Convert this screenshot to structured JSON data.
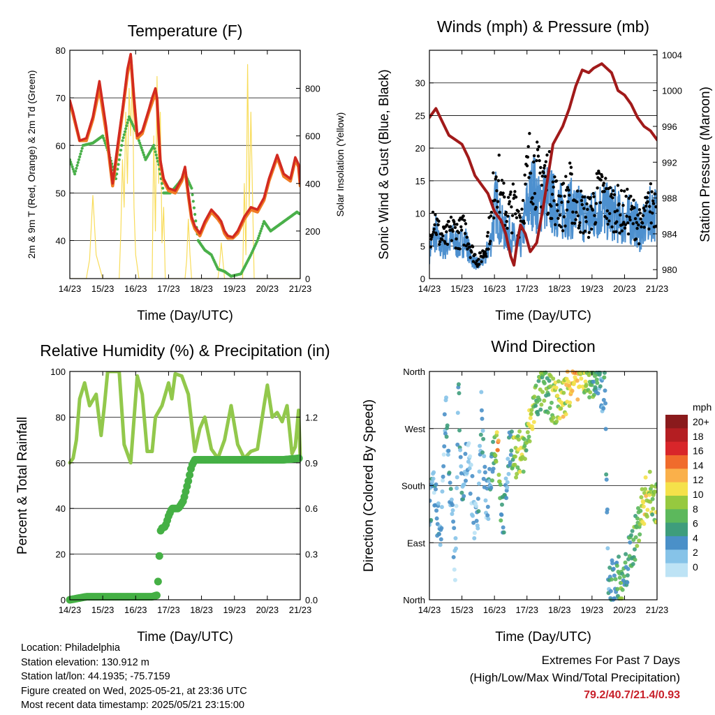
{
  "colors": {
    "temp_red": "#d22a20",
    "temp_orange": "#f07b24",
    "dewpoint_green": "#4ab04a",
    "solar_yellow": "#f8dc5a",
    "wind_blue": "#4d90cf",
    "gust_black": "#000000",
    "pressure_maroon": "#a11a1a",
    "rh_light_green": "#92c84c",
    "precip_green": "#45b045",
    "extremes_red": "#c8202a"
  },
  "time_axis": {
    "tick_labels": [
      "14/23",
      "15/23",
      "16/23",
      "17/23",
      "18/23",
      "19/23",
      "20/23",
      "21/23"
    ],
    "xlabel": "Time (Day/UTC)"
  },
  "chart_data": [
    {
      "id": "temperature",
      "type": "line",
      "title": "Temperature (F)",
      "ylabel_left": "2m & 9m T (Red, Orange) & 2m Td (Green)",
      "ylabel_right": "Solar Insolation (Yellow)",
      "ylim": [
        32,
        80
      ],
      "yticks": [
        40,
        50,
        60,
        70,
        80
      ],
      "y2lim": [
        0,
        960
      ],
      "y2ticks": [
        0,
        200,
        400,
        600,
        800
      ],
      "grid": true,
      "series": [
        {
          "x": [
            0,
            0.1,
            0.3,
            0.5,
            0.7,
            0.9,
            1.1,
            1.3,
            1.45,
            1.6,
            1.75,
            1.85,
            1.95,
            2.05,
            2.2,
            2.4,
            2.5,
            2.6,
            2.65,
            2.7,
            2.75,
            2.85,
            3.0,
            3.2,
            3.4,
            3.5,
            3.6,
            3.7,
            3.8,
            3.95,
            4.1,
            4.3,
            4.5,
            4.6,
            4.7,
            4.8,
            4.95,
            5.1,
            5.3,
            5.5,
            5.7,
            5.9,
            6.05,
            6.2,
            6.3,
            6.5,
            6.7,
            6.85,
            6.95,
            7.0
          ],
          "values": [
            69.5,
            67,
            61,
            61.5,
            66,
            73.5,
            64,
            52,
            60,
            67.5,
            76,
            79.2,
            70,
            62,
            63,
            67.5,
            70,
            72,
            70,
            63,
            57,
            53,
            51,
            50.5,
            53,
            55.5,
            50,
            45,
            43,
            41.5,
            44,
            46.5,
            45,
            44,
            42,
            41,
            40.7,
            42,
            45,
            47,
            46.5,
            49,
            53,
            56,
            58,
            54,
            53,
            57.5,
            56,
            52
          ]
        },
        {
          "x": [
            0,
            0.1,
            0.3,
            0.5,
            0.7,
            0.9,
            1.1,
            1.3,
            1.45,
            1.6,
            1.75,
            1.85,
            1.95,
            2.05,
            2.2,
            2.4,
            2.5,
            2.6,
            2.65,
            2.7,
            2.75,
            2.85,
            3.0,
            3.2,
            3.4,
            3.5,
            3.6,
            3.7,
            3.8,
            3.95,
            4.1,
            4.3,
            4.5,
            4.6,
            4.7,
            4.8,
            4.95,
            5.1,
            5.3,
            5.5,
            5.7,
            5.9,
            6.05,
            6.2,
            6.3,
            6.5,
            6.7,
            6.85,
            6.95,
            7.0
          ],
          "values": [
            69,
            66.5,
            61,
            61,
            65.5,
            72,
            63,
            51.5,
            59,
            67,
            75,
            78.5,
            69.5,
            61.5,
            62.5,
            67,
            69,
            71,
            69.5,
            62.5,
            56.5,
            52.5,
            50.5,
            50,
            52.5,
            55,
            49.5,
            44.5,
            42.5,
            41,
            43.5,
            46,
            44.5,
            43.5,
            41.5,
            40.5,
            40.5,
            41.5,
            44.5,
            46.5,
            46,
            48.5,
            52.5,
            55.5,
            57.5,
            53.5,
            52.5,
            57,
            55.5,
            51.5
          ]
        },
        {
          "x": [
            0,
            0.15,
            0.4,
            0.7,
            1.0,
            1.2,
            1.4,
            1.6,
            1.8,
            2.0,
            2.15,
            2.3,
            2.55,
            2.7,
            2.85,
            3.05,
            3.3,
            3.5,
            3.7,
            3.9,
            4.1,
            4.3,
            4.5,
            4.7,
            4.9,
            5.2,
            5.5,
            5.7,
            5.9,
            6.1,
            6.3,
            6.5,
            6.7,
            6.9,
            7.0
          ],
          "values": [
            57,
            54,
            60,
            60.5,
            62,
            58,
            53,
            61,
            66,
            63,
            60,
            57,
            60,
            56,
            50,
            50,
            52,
            54,
            51,
            40,
            38,
            37,
            34,
            33.5,
            32.5,
            33,
            37,
            40,
            44,
            42,
            43,
            44,
            45,
            46,
            45.5
          ]
        },
        {
          "x": [
            0,
            0.3,
            0.5,
            0.6,
            0.7,
            0.8,
            1.0,
            1.3,
            1.5,
            1.55,
            1.6,
            1.65,
            1.7,
            1.75,
            1.8,
            1.85,
            1.9,
            1.95,
            2.0,
            2.1,
            2.2,
            2.4,
            2.5,
            2.55,
            2.6,
            2.65,
            2.7,
            2.75,
            2.8,
            2.85,
            2.9,
            3.0,
            3.5,
            3.55,
            3.6,
            3.65,
            3.7,
            3.8,
            4.5,
            4.55,
            4.6,
            4.7,
            5.2,
            5.25,
            5.3,
            5.35,
            5.4,
            5.45,
            5.5,
            5.6,
            6.3,
            6.5,
            7.0
          ],
          "values": [
            0,
            0,
            0,
            80,
            350,
            100,
            0,
            0,
            0,
            200,
            500,
            300,
            700,
            400,
            800,
            600,
            900,
            300,
            100,
            0,
            0,
            0,
            0,
            600,
            200,
            850,
            400,
            700,
            150,
            300,
            0,
            0,
            0,
            80,
            250,
            100,
            0,
            0,
            0,
            60,
            150,
            0,
            0,
            0,
            400,
            100,
            900,
            300,
            700,
            0,
            0,
            0,
            0
          ]
        }
      ]
    },
    {
      "id": "winds",
      "type": "scatter",
      "title": "Winds (mph) & Pressure (mb)",
      "ylabel_left": "Sonic Wind & Gust (Blue, Black)",
      "ylabel_right": "Station Pressure (Maroon)",
      "ylim": [
        0,
        35
      ],
      "yticks": [
        0,
        5,
        10,
        15,
        20,
        25,
        30
      ],
      "y2lim": [
        979,
        1004.5
      ],
      "y2ticks": [
        980,
        984,
        988,
        992,
        996,
        1000,
        1004
      ],
      "grid": true,
      "series": [
        {
          "x": [
            0,
            0.1,
            0.2,
            0.3,
            0.5,
            0.7,
            0.9,
            1.1,
            1.3,
            1.5,
            1.7,
            1.9,
            2.05,
            2.2,
            2.4,
            2.6,
            2.8,
            3.0,
            3.1,
            3.2,
            3.35,
            3.5,
            3.7,
            3.9,
            4.1,
            4.3,
            4.5,
            4.7,
            4.9,
            5.1,
            5.3,
            5.5,
            5.7,
            5.9,
            6.1,
            6.3,
            6.5,
            6.7,
            6.8,
            6.9,
            7.0
          ],
          "values": [
            4,
            6,
            7,
            5,
            5,
            6,
            5,
            6,
            3,
            2,
            3,
            6,
            12,
            8,
            7,
            6,
            5,
            11,
            12,
            14,
            11,
            13,
            12,
            11,
            10,
            11,
            10,
            10,
            9,
            10,
            11,
            10,
            10,
            9,
            9,
            9,
            7,
            9,
            10,
            10,
            10
          ]
        },
        {
          "x": [
            0,
            0.1,
            0.2,
            0.3,
            0.5,
            0.7,
            0.9,
            1.1,
            1.3,
            1.5,
            1.7,
            1.9,
            2.05,
            2.2,
            2.4,
            2.6,
            2.8,
            3.0,
            3.1,
            3.2,
            3.35,
            3.5,
            3.7,
            3.9,
            4.1,
            4.3,
            4.5,
            4.7,
            4.9,
            5.1,
            5.3,
            5.5,
            5.7,
            5.9,
            6.1,
            6.3,
            6.5,
            6.7,
            6.8,
            6.9,
            7.0
          ],
          "values": [
            7,
            12,
            10,
            8,
            7,
            9,
            8,
            9,
            5,
            3,
            5,
            10,
            21,
            14,
            12,
            13,
            11,
            18,
            21,
            20,
            18,
            19,
            17,
            14,
            13,
            16,
            13,
            12,
            11,
            14,
            16,
            13,
            13,
            12,
            12,
            11,
            9,
            12,
            13,
            14,
            13
          ]
        },
        {
          "x": [
            0,
            0.2,
            0.4,
            0.6,
            0.8,
            1.0,
            1.2,
            1.4,
            1.6,
            1.8,
            1.9,
            2.0,
            2.1,
            2.2,
            2.35,
            2.5,
            2.6,
            2.7,
            2.8,
            2.95,
            3.1,
            3.3,
            3.5,
            3.8,
            4.1,
            4.3,
            4.5,
            4.7,
            4.9,
            5.05,
            5.3,
            5.6,
            5.8,
            6.0,
            6.2,
            6.4,
            6.6,
            6.8,
            7.0
          ],
          "values": [
            997,
            998,
            996.5,
            995,
            994.5,
            994,
            992.5,
            990.5,
            989.5,
            988.5,
            987.5,
            986.5,
            986,
            985.5,
            984,
            981.5,
            980.5,
            983,
            985,
            984,
            982,
            983,
            987,
            994,
            996,
            998,
            1000.5,
            1002.3,
            1002,
            1002.5,
            1003,
            1002,
            1000,
            999.5,
            998.5,
            997,
            996,
            995.5,
            994.5
          ]
        }
      ]
    },
    {
      "id": "humidity",
      "type": "line",
      "title": "Relative Humidity (%) & Precipitation (in)",
      "ylabel_left": "Percent & Total Rainfall",
      "ylim": [
        0,
        100
      ],
      "yticks": [
        0,
        20,
        40,
        60,
        80,
        100
      ],
      "y2lim": [
        0,
        1.5
      ],
      "y2ticks": [
        0.0,
        0.3,
        0.6,
        0.9,
        1.2
      ],
      "grid": true,
      "series": [
        {
          "x": [
            0,
            0.1,
            0.2,
            0.3,
            0.45,
            0.6,
            0.8,
            0.95,
            1.05,
            1.15,
            1.3,
            1.5,
            1.65,
            1.85,
            2.05,
            2.2,
            2.35,
            2.5,
            2.6,
            2.8,
            3.0,
            3.1,
            3.2,
            3.4,
            3.6,
            3.8,
            3.95,
            4.1,
            4.3,
            4.5,
            4.7,
            4.9,
            5.1,
            5.3,
            5.5,
            5.7,
            5.9,
            6.0,
            6.15,
            6.3,
            6.45,
            6.6,
            6.75,
            6.85,
            6.95,
            7.0
          ],
          "values": [
            60,
            62,
            70,
            88,
            95,
            85,
            90,
            72,
            85,
            100,
            100,
            100,
            68,
            60,
            98,
            90,
            65,
            65,
            80,
            85,
            95,
            88,
            99,
            98,
            90,
            65,
            75,
            80,
            66,
            62,
            70,
            85,
            68,
            62,
            65,
            66,
            85,
            94,
            80,
            82,
            78,
            85,
            64,
            67,
            83,
            62
          ]
        },
        {
          "x": [
            0,
            0.5,
            1.0,
            1.5,
            2.0,
            2.5,
            2.65,
            2.7,
            2.75,
            2.8,
            2.9,
            3.0,
            3.1,
            3.3,
            3.45,
            3.6,
            3.7,
            3.8,
            4.0,
            4.5,
            5.0,
            5.5,
            6.0,
            6.5,
            7.0
          ],
          "values": [
            0,
            0.02,
            0.02,
            0.02,
            0.02,
            0.02,
            0.03,
            0.18,
            0.45,
            0.47,
            0.48,
            0.55,
            0.6,
            0.6,
            0.65,
            0.78,
            0.88,
            0.92,
            0.92,
            0.92,
            0.92,
            0.92,
            0.92,
            0.92,
            0.93
          ]
        }
      ]
    },
    {
      "id": "wind_direction",
      "type": "scatter",
      "title": "Wind Direction",
      "ylabel": "Direction (Colored By Speed)",
      "yticks": [
        "North",
        "East",
        "South",
        "West",
        "North"
      ],
      "ylim": [
        0,
        360
      ],
      "grid": true,
      "legend_title": "mph",
      "legend_labels": [
        "0",
        "2",
        "4",
        "6",
        "8",
        "10",
        "12",
        "14",
        "16",
        "18",
        "20+"
      ],
      "legend_colors": [
        "#bde3f5",
        "#86c3e8",
        "#4a90c8",
        "#3e9d7c",
        "#5cb85c",
        "#96c93f",
        "#f5e14a",
        "#fab04a",
        "#f06b2c",
        "#d8262a",
        "#b41e22",
        "#8a1a1c"
      ],
      "series": [
        {
          "x": [
            0,
            0.15,
            0.25,
            0.35,
            0.5,
            0.65,
            0.8,
            0.9,
            1.0,
            1.1,
            1.2,
            1.3,
            1.4,
            1.5,
            1.6,
            1.7,
            1.8,
            1.9,
            2.0,
            2.1,
            2.2,
            2.3,
            2.4,
            2.5,
            2.6,
            2.7,
            2.8,
            2.9,
            3.0,
            3.15,
            3.3,
            3.5,
            3.7,
            3.9,
            4.1,
            4.3,
            4.5,
            4.7,
            4.9,
            5.05,
            5.2,
            5.3,
            5.4,
            5.5,
            5.6,
            5.7,
            5.8,
            5.9,
            6.0,
            6.1,
            6.2,
            6.35,
            6.5,
            6.65,
            6.8,
            6.95
          ],
          "values": [
            150,
            170,
            130,
            110,
            300,
            160,
            60,
            340,
            140,
            200,
            250,
            170,
            120,
            150,
            300,
            180,
            140,
            210,
            240,
            260,
            150,
            130,
            200,
            250,
            230,
            220,
            240,
            230,
            250,
            290,
            320,
            330,
            320,
            310,
            315,
            340,
            350,
            350,
            355,
            345,
            340,
            320,
            350,
            20,
            30,
            25,
            40,
            15,
            30,
            60,
            80,
            100,
            140,
            160,
            170,
            155
          ],
          "speeds": [
            4,
            3,
            5,
            2,
            4,
            3,
            2,
            4,
            4,
            2,
            3,
            1,
            2,
            3,
            4,
            2,
            3,
            5,
            7,
            14,
            6,
            5,
            4,
            5,
            10,
            8,
            12,
            10,
            8,
            12,
            6,
            9,
            8,
            10,
            11,
            12,
            14,
            10,
            9,
            7,
            5,
            4,
            6,
            3,
            6,
            5,
            7,
            8,
            6,
            5,
            7,
            8,
            10,
            12,
            9,
            10
          ]
        }
      ]
    }
  ],
  "info": {
    "location": "Location: Philadelphia",
    "elevation": "Station elevation: 130.912 m",
    "latlon": "Station lat/lon: 44.1935; -75.7159",
    "created": "Figure created on Wed, 2025-05-21, at 23:36 UTC",
    "recent": "Most recent data timestamp: 2025/05/21 23:15:00"
  },
  "extremes": {
    "line1": "Extremes For Past 7 Days",
    "line2": "(High/Low/Max Wind/Total Precipitation)",
    "values": "79.2/40.7/21.4/0.93"
  }
}
